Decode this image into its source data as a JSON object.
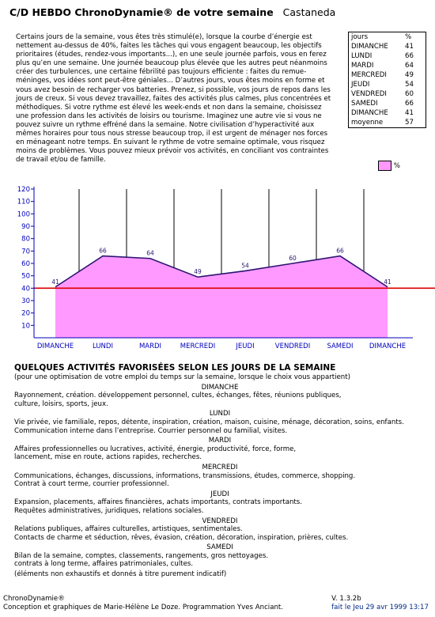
{
  "header": {
    "title": "C/D HEBDO ChronoDynamie® de votre semaine",
    "author": "Castaneda"
  },
  "intro_text": "Certains jours de la semaine, vous êtes très stimulé(e), lorsque la courbe d’énergie est nettement au-dessus de 40%, faites les tâches qui vous engagent beaucoup, les objectifs prioritaires (études, rendez-vous importants...), en une seule journée parfois, vous en ferez plus qu’en une semaine. Une journée beaucoup plus élevée que les autres peut néanmoins créer des turbulences, une certaine fébrilité pas toujours efficiente : faites du remue-méninges, vos idées sont peut-être géniales... D’autres jours, vous êtes moins en forme et vous avez besoin de recharger vos batteries. Prenez, si possible, vos jours de repos dans les jours de creux. Si vous devez travaillez, faites des activités plus calmes, plus concentrées et méthodiques. Si votre rythme est élevé les week-ends et non dans la semaine, choisissez une profession dans les activités de loisirs ou tourisme. Imaginez une autre vie si vous ne pouvez suivre un rythme effréné dans la semaine. Notre civilisation d’hyperactivité aux mêmes horaires pour tous nous stresse beaucoup trop, il est urgent de ménager nos forces en ménageant notre temps. En suivant le rythme de votre semaine optimale, vous risquez moins de problèmes. Vous pouvez mieux prévoir vos activités, en conciliant vos contraintes de travail et/ou de famille.",
  "stats_table": {
    "header": [
      "jours",
      "%"
    ],
    "rows": [
      [
        "DIMANCHE",
        "41"
      ],
      [
        "LUNDI",
        "66"
      ],
      [
        "MARDI",
        "64"
      ],
      [
        "MERCREDI",
        "49"
      ],
      [
        "JEUDI",
        "54"
      ],
      [
        "VENDREDI",
        "60"
      ],
      [
        "SAMEDI",
        "66"
      ],
      [
        "DIMANCHE",
        "41"
      ],
      [
        "moyenne",
        "57"
      ]
    ]
  },
  "legend": {
    "label": "%",
    "color": "#ff99ff"
  },
  "chart_data": {
    "type": "area",
    "categories": [
      "DIMANCHE",
      "LUNDI",
      "MARDI",
      "MERCREDI",
      "JEUDI",
      "VENDREDI",
      "SAMEDI",
      "DIMANCHE"
    ],
    "series": [
      {
        "values": [
          41,
          66,
          64,
          49,
          54,
          60,
          66,
          41
        ]
      }
    ],
    "point_labels": [
      "41",
      "66",
      "64",
      "49",
      "54",
      "60",
      "66",
      "41"
    ],
    "ylim": [
      0,
      120
    ],
    "yticks": [
      10,
      20,
      30,
      40,
      50,
      60,
      70,
      80,
      90,
      100,
      110,
      120
    ],
    "reference_line": 40,
    "fill_color": "#ff99ff",
    "line_color": "#2a1470",
    "reference_color": "#dd0000",
    "axis_color": "#0000bb",
    "grid": "vertical"
  },
  "activities": {
    "title": "QUELQUES ACTIVITÉS FAVORISÉES SELON LES JOURS DE LA SEMAINE",
    "subtitle": "(pour une optimisation de votre emploi du temps sur la semaine, lorsque le choix vous appartient)",
    "days": [
      {
        "name": "DIMANCHE",
        "lines": [
          "Rayonnement, création. développement personnel, cultes, échanges, fêtes, réunions publiques,",
          "culture, loisirs, sports, jeux."
        ]
      },
      {
        "name": "LUNDI",
        "lines": [
          "Vie privée, vie familiale, repos, détente, inspiration, création, maison, cuisine, ménage, décoration, soins, enfants.",
          "Communication interne dans l’entreprise. Courrier personnel ou familial, visites."
        ]
      },
      {
        "name": "MARDI",
        "lines": [
          "Affaires professionnelles ou lucratives, activité, énergie, productivité, force, forme,",
          "lancement, mise en route, actions rapides, recherches."
        ]
      },
      {
        "name": "MERCREDI",
        "lines": [
          "Communications, échanges, discussions, informations, transmissions, études, commerce, shopping.",
          "Contrat à court terme, courrier professionnel."
        ]
      },
      {
        "name": "JEUDI",
        "lines": [
          "Expansion, placements, affaires financières, achats importants, contrats importants.",
          "Requêtes administratives, juridiques, relations sociales."
        ]
      },
      {
        "name": "VENDREDI",
        "lines": [
          "Relations publiques, affaires culturelles, artistiques, sentimentales.",
          "Contacts de charme et séduction, rêves, évasion, création, décoration, inspiration, prières, cultes."
        ]
      },
      {
        "name": "SAMEDI",
        "lines": [
          "Bilan de la semaine, comptes, classements, rangements, gros nettoyages.",
          "contrats à long terme, affaires patrimoniales, cultes."
        ]
      }
    ],
    "note": "(éléments non exhaustifs et donnés à titre purement indicatif)"
  },
  "footer": {
    "line1": "ChronoDynamie®",
    "line2": "Conception et graphiques de Marie-Hélène Le Doze. Programmation Yves Anciant.",
    "version": "V. 1.3.2b",
    "date": "fait le Jeu 29 avr 1999 13:17"
  }
}
